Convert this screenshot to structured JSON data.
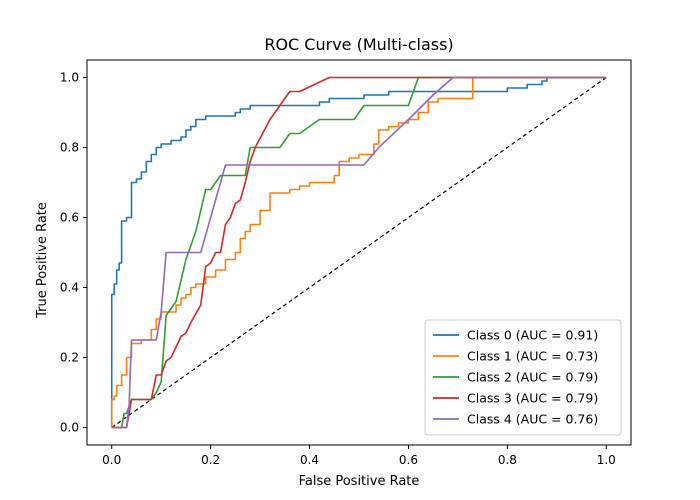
{
  "chart_data": {
    "type": "line",
    "title": "ROC Curve (Multi-class)",
    "xlabel": "False Positive Rate",
    "ylabel": "True Positive Rate",
    "xlim": [
      -0.05,
      1.05
    ],
    "ylim": [
      -0.05,
      1.05
    ],
    "xticks": [
      0.0,
      0.2,
      0.4,
      0.6,
      0.8,
      1.0
    ],
    "yticks": [
      0.0,
      0.2,
      0.4,
      0.6,
      0.8,
      1.0
    ],
    "xtick_labels": [
      "0.0",
      "0.2",
      "0.4",
      "0.6",
      "0.8",
      "1.0"
    ],
    "ytick_labels": [
      "0.0",
      "0.2",
      "0.4",
      "0.6",
      "0.8",
      "1.0"
    ],
    "grid": false,
    "legend_position": "lower-right",
    "diagonal": {
      "x": [
        0,
        1
      ],
      "y": [
        0,
        1
      ],
      "color": "#000000",
      "style": "dashed"
    },
    "series": [
      {
        "name": "Class 0 (AUC = 0.91)",
        "color": "#1f77b4",
        "x": [
          0,
          0,
          0.005,
          0.005,
          0.01,
          0.01,
          0.015,
          0.015,
          0.02,
          0.02,
          0.03,
          0.03,
          0.04,
          0.04,
          0.05,
          0.05,
          0.06,
          0.06,
          0.07,
          0.07,
          0.08,
          0.08,
          0.09,
          0.09,
          0.1,
          0.1,
          0.12,
          0.12,
          0.13,
          0.13,
          0.14,
          0.14,
          0.15,
          0.15,
          0.16,
          0.16,
          0.17,
          0.17,
          0.19,
          0.19,
          0.25,
          0.25,
          0.26,
          0.26,
          0.28,
          0.28,
          0.3,
          0.3,
          0.42,
          0.42,
          0.44,
          0.44,
          0.48,
          0.48,
          0.51,
          0.51,
          0.56,
          0.56,
          0.61,
          0.61,
          0.8,
          0.8,
          0.84,
          0.84,
          0.87,
          0.87,
          0.88,
          0.88,
          1.0
        ],
        "y": [
          0,
          0.38,
          0.38,
          0.41,
          0.41,
          0.45,
          0.45,
          0.47,
          0.47,
          0.59,
          0.59,
          0.6,
          0.6,
          0.7,
          0.7,
          0.71,
          0.71,
          0.73,
          0.73,
          0.76,
          0.76,
          0.78,
          0.78,
          0.8,
          0.8,
          0.81,
          0.81,
          0.82,
          0.82,
          0.82,
          0.82,
          0.83,
          0.83,
          0.85,
          0.85,
          0.86,
          0.86,
          0.88,
          0.88,
          0.89,
          0.89,
          0.9,
          0.9,
          0.91,
          0.91,
          0.92,
          0.92,
          0.92,
          0.92,
          0.93,
          0.93,
          0.94,
          0.94,
          0.94,
          0.94,
          0.95,
          0.95,
          0.96,
          0.96,
          0.96,
          0.96,
          0.97,
          0.97,
          0.98,
          0.98,
          0.99,
          0.99,
          1.0,
          1.0
        ]
      },
      {
        "name": "Class 1 (AUC = 0.73)",
        "color": "#ff7f0e",
        "x": [
          0,
          0,
          0.005,
          0.005,
          0.01,
          0.01,
          0.02,
          0.02,
          0.03,
          0.03,
          0.04,
          0.04,
          0.06,
          0.06,
          0.08,
          0.08,
          0.09,
          0.09,
          0.1,
          0.1,
          0.13,
          0.13,
          0.14,
          0.14,
          0.15,
          0.15,
          0.16,
          0.16,
          0.17,
          0.17,
          0.19,
          0.19,
          0.21,
          0.21,
          0.23,
          0.23,
          0.25,
          0.25,
          0.26,
          0.26,
          0.27,
          0.27,
          0.28,
          0.28,
          0.3,
          0.3,
          0.32,
          0.32,
          0.34,
          0.34,
          0.36,
          0.36,
          0.38,
          0.38,
          0.4,
          0.4,
          0.42,
          0.42,
          0.45,
          0.45,
          0.46,
          0.46,
          0.48,
          0.48,
          0.5,
          0.5,
          0.53,
          0.53,
          0.54,
          0.54,
          0.56,
          0.56,
          0.58,
          0.58,
          0.6,
          0.6,
          0.62,
          0.62,
          0.64,
          0.64,
          0.66,
          0.66,
          0.7,
          0.7,
          0.73,
          0.73,
          1.0
        ],
        "y": [
          0,
          0.08,
          0.08,
          0.09,
          0.09,
          0.12,
          0.12,
          0.15,
          0.15,
          0.2,
          0.2,
          0.24,
          0.24,
          0.25,
          0.25,
          0.28,
          0.28,
          0.31,
          0.31,
          0.33,
          0.33,
          0.35,
          0.35,
          0.37,
          0.37,
          0.38,
          0.38,
          0.4,
          0.4,
          0.41,
          0.41,
          0.43,
          0.43,
          0.45,
          0.45,
          0.48,
          0.48,
          0.5,
          0.5,
          0.54,
          0.54,
          0.56,
          0.56,
          0.58,
          0.58,
          0.62,
          0.62,
          0.67,
          0.67,
          0.67,
          0.67,
          0.68,
          0.68,
          0.69,
          0.69,
          0.7,
          0.7,
          0.7,
          0.7,
          0.72,
          0.72,
          0.76,
          0.76,
          0.77,
          0.77,
          0.78,
          0.78,
          0.81,
          0.81,
          0.85,
          0.85,
          0.86,
          0.86,
          0.87,
          0.87,
          0.88,
          0.88,
          0.9,
          0.9,
          0.93,
          0.93,
          0.94,
          0.94,
          0.94,
          0.94,
          1.0,
          1.0
        ]
      },
      {
        "name": "Class 2 (AUC = 0.79)",
        "color": "#2ca02c",
        "x": [
          0,
          0.02,
          0.025,
          0.03,
          0.035,
          0.04,
          0.05,
          0.08,
          0.09,
          0.1,
          0.11,
          0.115,
          0.13,
          0.14,
          0.15,
          0.16,
          0.17,
          0.19,
          0.2,
          0.22,
          0.23,
          0.27,
          0.28,
          0.34,
          0.36,
          0.38,
          0.4,
          0.42,
          0.44,
          0.49,
          0.51,
          0.54,
          0.6,
          0.62,
          0.64,
          1.0
        ],
        "y": [
          0,
          0,
          0.04,
          0.04,
          0.06,
          0.08,
          0.08,
          0.08,
          0.1,
          0.13,
          0.32,
          0.33,
          0.36,
          0.42,
          0.48,
          0.52,
          0.56,
          0.68,
          0.68,
          0.72,
          0.72,
          0.72,
          0.8,
          0.8,
          0.84,
          0.84,
          0.86,
          0.88,
          0.88,
          0.88,
          0.92,
          0.92,
          0.92,
          1.0,
          1.0,
          1.0
        ]
      },
      {
        "name": "Class 3 (AUC = 0.79)",
        "color": "#d62728",
        "x": [
          0,
          0.03,
          0.04,
          0.05,
          0.08,
          0.09,
          0.1,
          0.11,
          0.12,
          0.14,
          0.15,
          0.16,
          0.18,
          0.19,
          0.2,
          0.21,
          0.22,
          0.23,
          0.24,
          0.25,
          0.26,
          0.27,
          0.28,
          0.29,
          0.32,
          0.36,
          0.38,
          0.41,
          0.44,
          0.5,
          0.6,
          1.0
        ],
        "y": [
          0,
          0,
          0.08,
          0.08,
          0.08,
          0.15,
          0.15,
          0.19,
          0.2,
          0.26,
          0.27,
          0.3,
          0.35,
          0.46,
          0.47,
          0.5,
          0.5,
          0.58,
          0.6,
          0.64,
          0.65,
          0.7,
          0.76,
          0.8,
          0.88,
          0.96,
          0.96,
          0.98,
          1.0,
          1.0,
          1.0,
          1.0
        ]
      },
      {
        "name": "Class 4 (AUC = 0.76)",
        "color": "#9467bd",
        "x": [
          0,
          0.03,
          0.035,
          0.04,
          0.05,
          0.06,
          0.07,
          0.08,
          0.09,
          0.1,
          0.11,
          0.12,
          0.13,
          0.15,
          0.18,
          0.2,
          0.23,
          0.24,
          0.28,
          0.3,
          0.35,
          0.4,
          0.45,
          0.5,
          0.51,
          0.54,
          0.6,
          0.65,
          0.69,
          0.72,
          1.0
        ],
        "y": [
          0,
          0,
          0.06,
          0.25,
          0.25,
          0.25,
          0.25,
          0.25,
          0.25,
          0.33,
          0.5,
          0.5,
          0.5,
          0.5,
          0.5,
          0.6,
          0.75,
          0.75,
          0.75,
          0.75,
          0.75,
          0.75,
          0.75,
          0.75,
          0.75,
          0.8,
          0.88,
          0.95,
          1.0,
          1.0,
          1.0
        ]
      }
    ]
  }
}
